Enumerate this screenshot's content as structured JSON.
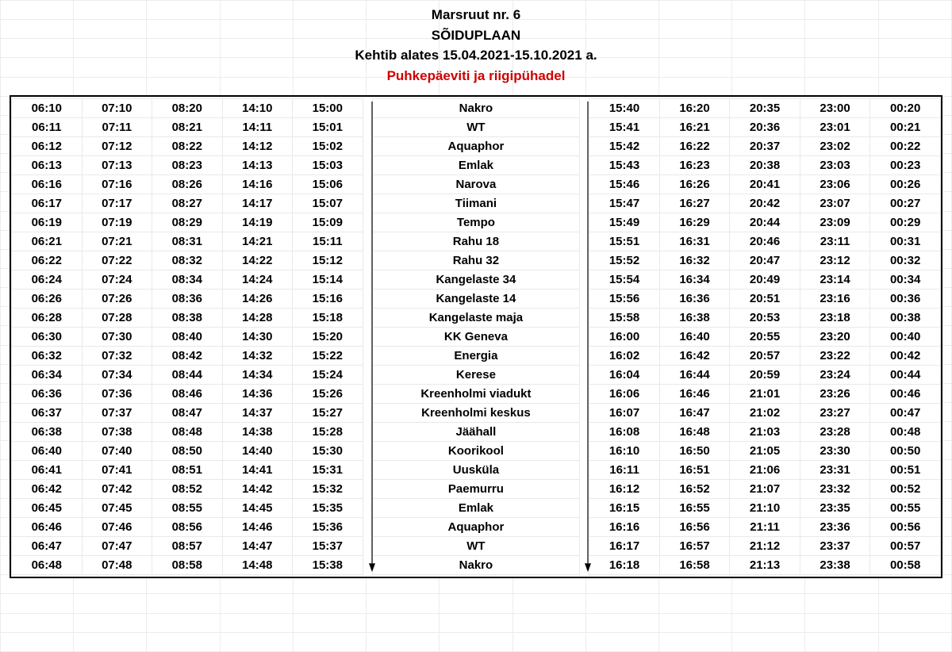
{
  "header": {
    "line1": "Marsruut  nr. 6",
    "line2": "SÕIDUPLAAN",
    "line3": "Kehtib alates 15.04.2021-15.10.2021 a.",
    "line4": "Puhkepäeviti ja riigipühadel",
    "line4_color": "#d00000"
  },
  "colors": {
    "border": "#000000",
    "grid": "#ececec",
    "cell_border": "#e9e9e9",
    "background": "#ffffff",
    "text": "#000000"
  },
  "schedule": {
    "left_runs": 5,
    "right_runs": 5,
    "stops": [
      "Nakro",
      "WT",
      "Aquaphor",
      "Emlak",
      "Narova",
      "Tiimani",
      "Tempo",
      "Rahu 18",
      "Rahu 32",
      "Kangelaste 34",
      "Kangelaste 14",
      "Kangelaste maja",
      "KK Geneva",
      "Energia",
      "Kerese",
      "Kreenholmi viadukt",
      "Kreenholmi keskus",
      "Jäähall",
      "Koorikool",
      "Uusküla",
      "Paemurru",
      "Emlak",
      "Aquaphor",
      "WT",
      "Nakro"
    ],
    "rows": [
      {
        "l": [
          "06:10",
          "07:10",
          "08:20",
          "14:10",
          "15:00"
        ],
        "r": [
          "15:40",
          "16:20",
          "20:35",
          "23:00",
          "00:20"
        ]
      },
      {
        "l": [
          "06:11",
          "07:11",
          "08:21",
          "14:11",
          "15:01"
        ],
        "r": [
          "15:41",
          "16:21",
          "20:36",
          "23:01",
          "00:21"
        ]
      },
      {
        "l": [
          "06:12",
          "07:12",
          "08:22",
          "14:12",
          "15:02"
        ],
        "r": [
          "15:42",
          "16:22",
          "20:37",
          "23:02",
          "00:22"
        ]
      },
      {
        "l": [
          "06:13",
          "07:13",
          "08:23",
          "14:13",
          "15:03"
        ],
        "r": [
          "15:43",
          "16:23",
          "20:38",
          "23:03",
          "00:23"
        ]
      },
      {
        "l": [
          "06:16",
          "07:16",
          "08:26",
          "14:16",
          "15:06"
        ],
        "r": [
          "15:46",
          "16:26",
          "20:41",
          "23:06",
          "00:26"
        ]
      },
      {
        "l": [
          "06:17",
          "07:17",
          "08:27",
          "14:17",
          "15:07"
        ],
        "r": [
          "15:47",
          "16:27",
          "20:42",
          "23:07",
          "00:27"
        ]
      },
      {
        "l": [
          "06:19",
          "07:19",
          "08:29",
          "14:19",
          "15:09"
        ],
        "r": [
          "15:49",
          "16:29",
          "20:44",
          "23:09",
          "00:29"
        ]
      },
      {
        "l": [
          "06:21",
          "07:21",
          "08:31",
          "14:21",
          "15:11"
        ],
        "r": [
          "15:51",
          "16:31",
          "20:46",
          "23:11",
          "00:31"
        ]
      },
      {
        "l": [
          "06:22",
          "07:22",
          "08:32",
          "14:22",
          "15:12"
        ],
        "r": [
          "15:52",
          "16:32",
          "20:47",
          "23:12",
          "00:32"
        ]
      },
      {
        "l": [
          "06:24",
          "07:24",
          "08:34",
          "14:24",
          "15:14"
        ],
        "r": [
          "15:54",
          "16:34",
          "20:49",
          "23:14",
          "00:34"
        ]
      },
      {
        "l": [
          "06:26",
          "07:26",
          "08:36",
          "14:26",
          "15:16"
        ],
        "r": [
          "15:56",
          "16:36",
          "20:51",
          "23:16",
          "00:36"
        ]
      },
      {
        "l": [
          "06:28",
          "07:28",
          "08:38",
          "14:28",
          "15:18"
        ],
        "r": [
          "15:58",
          "16:38",
          "20:53",
          "23:18",
          "00:38"
        ]
      },
      {
        "l": [
          "06:30",
          "07:30",
          "08:40",
          "14:30",
          "15:20"
        ],
        "r": [
          "16:00",
          "16:40",
          "20:55",
          "23:20",
          "00:40"
        ]
      },
      {
        "l": [
          "06:32",
          "07:32",
          "08:42",
          "14:32",
          "15:22"
        ],
        "r": [
          "16:02",
          "16:42",
          "20:57",
          "23:22",
          "00:42"
        ]
      },
      {
        "l": [
          "06:34",
          "07:34",
          "08:44",
          "14:34",
          "15:24"
        ],
        "r": [
          "16:04",
          "16:44",
          "20:59",
          "23:24",
          "00:44"
        ]
      },
      {
        "l": [
          "06:36",
          "07:36",
          "08:46",
          "14:36",
          "15:26"
        ],
        "r": [
          "16:06",
          "16:46",
          "21:01",
          "23:26",
          "00:46"
        ]
      },
      {
        "l": [
          "06:37",
          "07:37",
          "08:47",
          "14:37",
          "15:27"
        ],
        "r": [
          "16:07",
          "16:47",
          "21:02",
          "23:27",
          "00:47"
        ]
      },
      {
        "l": [
          "06:38",
          "07:38",
          "08:48",
          "14:38",
          "15:28"
        ],
        "r": [
          "16:08",
          "16:48",
          "21:03",
          "23:28",
          "00:48"
        ]
      },
      {
        "l": [
          "06:40",
          "07:40",
          "08:50",
          "14:40",
          "15:30"
        ],
        "r": [
          "16:10",
          "16:50",
          "21:05",
          "23:30",
          "00:50"
        ]
      },
      {
        "l": [
          "06:41",
          "07:41",
          "08:51",
          "14:41",
          "15:31"
        ],
        "r": [
          "16:11",
          "16:51",
          "21:06",
          "23:31",
          "00:51"
        ]
      },
      {
        "l": [
          "06:42",
          "07:42",
          "08:52",
          "14:42",
          "15:32"
        ],
        "r": [
          "16:12",
          "16:52",
          "21:07",
          "23:32",
          "00:52"
        ]
      },
      {
        "l": [
          "06:45",
          "07:45",
          "08:55",
          "14:45",
          "15:35"
        ],
        "r": [
          "16:15",
          "16:55",
          "21:10",
          "23:35",
          "00:55"
        ]
      },
      {
        "l": [
          "06:46",
          "07:46",
          "08:56",
          "14:46",
          "15:36"
        ],
        "r": [
          "16:16",
          "16:56",
          "21:11",
          "23:36",
          "00:56"
        ]
      },
      {
        "l": [
          "06:47",
          "07:47",
          "08:57",
          "14:47",
          "15:37"
        ],
        "r": [
          "16:17",
          "16:57",
          "21:12",
          "23:37",
          "00:57"
        ]
      },
      {
        "l": [
          "06:48",
          "07:48",
          "08:58",
          "14:48",
          "15:38"
        ],
        "r": [
          "16:18",
          "16:58",
          "21:13",
          "23:38",
          "00:58"
        ]
      }
    ]
  }
}
